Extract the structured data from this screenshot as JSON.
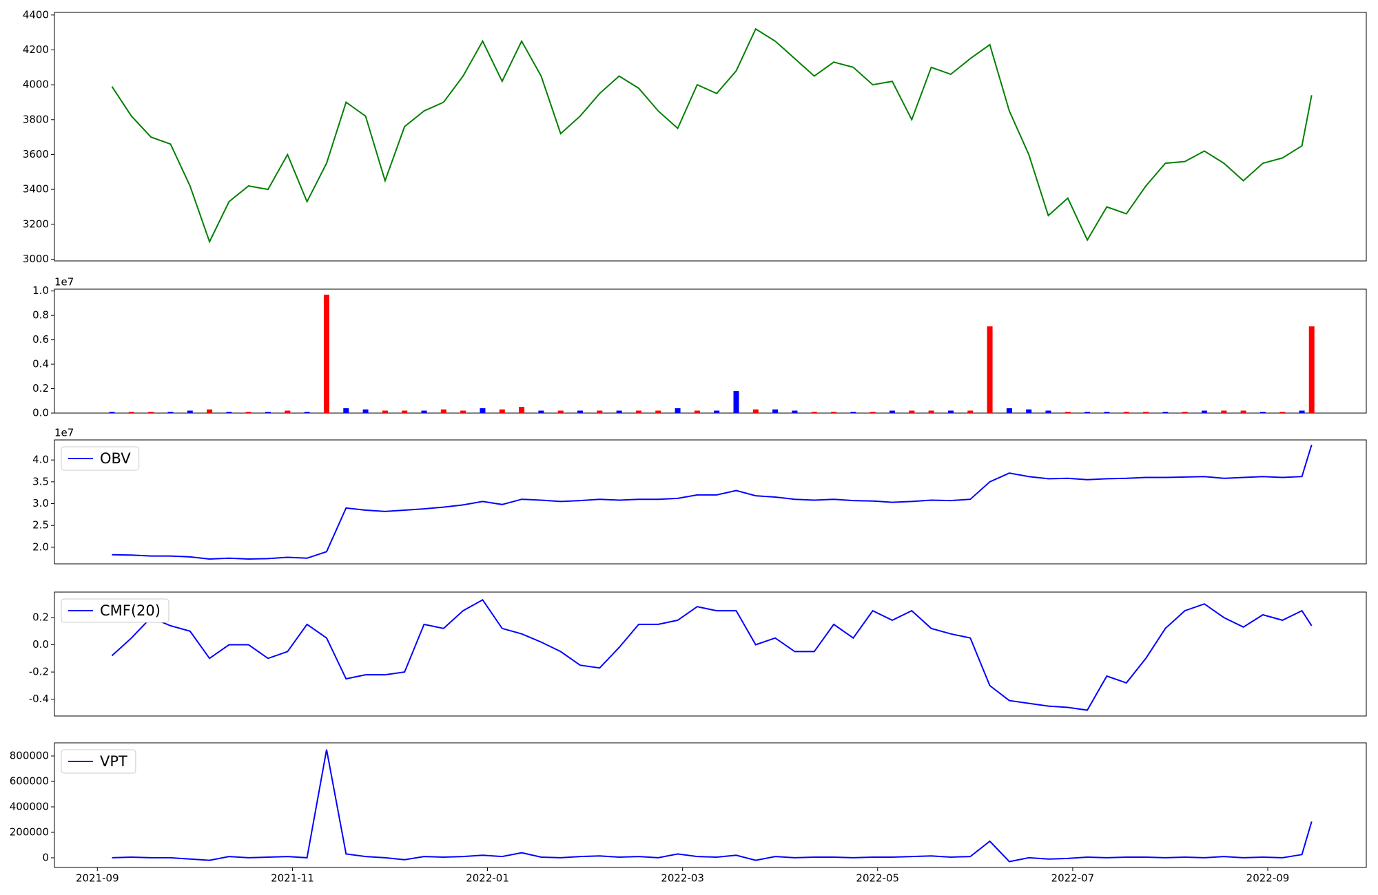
{
  "chart_data": [
    {
      "type": "line",
      "color": "green",
      "x": [
        0.15,
        0.35,
        0.55,
        0.75,
        0.95,
        1.15,
        1.35,
        1.55,
        1.75,
        1.95,
        2.15,
        2.35,
        2.55,
        2.75,
        2.95,
        3.15,
        3.35,
        3.55,
        3.75,
        3.95,
        4.15,
        4.35,
        4.55,
        4.75,
        4.95,
        5.15,
        5.35,
        5.55,
        5.75,
        5.95,
        6.15,
        6.35,
        6.55,
        6.75,
        6.95,
        7.15,
        7.35,
        7.55,
        7.75,
        7.95,
        8.15,
        8.35,
        8.55,
        8.75,
        8.95,
        9.15,
        9.35,
        9.55,
        9.75,
        9.95,
        10.15,
        10.35,
        10.55,
        10.75,
        10.95,
        11.15,
        11.35,
        11.55,
        11.75,
        11.95,
        12.15,
        12.35,
        12.45
      ],
      "values": [
        3990,
        3820,
        3700,
        3660,
        3420,
        3100,
        3330,
        3420,
        3400,
        3600,
        3330,
        3550,
        3900,
        3820,
        3450,
        3760,
        3850,
        3900,
        4050,
        4250,
        4020,
        4250,
        4050,
        3720,
        3820,
        3950,
        4050,
        3980,
        3850,
        3750,
        4000,
        3950,
        4080,
        4320,
        4250,
        4150,
        4050,
        4130,
        4100,
        4000,
        4020,
        3800,
        4100,
        4060,
        4150,
        4230,
        3850,
        3600,
        3250,
        3350,
        3110,
        3300,
        3260,
        3420,
        3550,
        3560,
        3620,
        3550,
        3450,
        3550,
        3580,
        3650,
        3940
      ],
      "xlim": [
        -0.44,
        13.01
      ],
      "ylim": [
        2990,
        4415
      ],
      "yticks": [
        3000,
        3200,
        3400,
        3600,
        3800,
        4000,
        4200,
        4400
      ]
    },
    {
      "type": "bar",
      "offset_label": "1e7",
      "x": [
        0.15,
        0.35,
        0.55,
        0.75,
        0.95,
        1.15,
        1.35,
        1.55,
        1.75,
        1.95,
        2.15,
        2.35,
        2.55,
        2.75,
        2.95,
        3.15,
        3.35,
        3.55,
        3.75,
        3.95,
        4.15,
        4.35,
        4.55,
        4.75,
        4.95,
        5.15,
        5.35,
        5.55,
        5.75,
        5.95,
        6.15,
        6.35,
        6.55,
        6.75,
        6.95,
        7.15,
        7.35,
        7.55,
        7.75,
        7.95,
        8.15,
        8.35,
        8.55,
        8.75,
        8.95,
        9.15,
        9.35,
        9.55,
        9.75,
        9.95,
        10.15,
        10.35,
        10.55,
        10.75,
        10.95,
        11.15,
        11.35,
        11.55,
        11.75,
        11.95,
        12.15,
        12.35,
        12.45
      ],
      "values": [
        0.01,
        0.01,
        0.01,
        0.01,
        0.02,
        0.03,
        0.01,
        0.01,
        0.01,
        0.02,
        0.01,
        0.97,
        0.04,
        0.03,
        0.02,
        0.02,
        0.02,
        0.03,
        0.02,
        0.04,
        0.03,
        0.05,
        0.02,
        0.02,
        0.02,
        0.02,
        0.02,
        0.02,
        0.02,
        0.04,
        0.02,
        0.02,
        0.18,
        0.03,
        0.03,
        0.02,
        0.01,
        0.01,
        0.01,
        0.01,
        0.02,
        0.02,
        0.02,
        0.02,
        0.02,
        0.71,
        0.04,
        0.03,
        0.02,
        0.01,
        0.01,
        0.01,
        0.01,
        0.01,
        0.01,
        0.01,
        0.02,
        0.02,
        0.02,
        0.01,
        0.01,
        0.02,
        0.71
      ],
      "colors": [
        "blue",
        "red",
        "red",
        "blue",
        "blue",
        "red",
        "blue",
        "red",
        "blue",
        "red",
        "blue",
        "red",
        "blue",
        "blue",
        "red",
        "red",
        "blue",
        "red",
        "red",
        "blue",
        "red",
        "red",
        "blue",
        "red",
        "blue",
        "red",
        "blue",
        "red",
        "red",
        "blue",
        "red",
        "blue",
        "blue",
        "red",
        "blue",
        "blue",
        "red",
        "red",
        "blue",
        "red",
        "blue",
        "red",
        "red",
        "blue",
        "red",
        "red",
        "blue",
        "blue",
        "blue",
        "red",
        "blue",
        "blue",
        "red",
        "red",
        "blue",
        "red",
        "blue",
        "red",
        "red",
        "blue",
        "red",
        "blue",
        "red"
      ],
      "xlim": [
        -0.44,
        13.01
      ],
      "ylim": [
        0,
        1.015
      ],
      "yticks": [
        {
          "value": 0,
          "label": "0.0"
        },
        0.2,
        0.4,
        0.6,
        0.8,
        {
          "value": 1,
          "label": "1.0"
        }
      ]
    },
    {
      "type": "line",
      "offset_label": "1e7",
      "legend": "upper left",
      "x": [
        0.15,
        0.35,
        0.55,
        0.75,
        0.95,
        1.15,
        1.35,
        1.55,
        1.75,
        1.95,
        2.15,
        2.35,
        2.55,
        2.75,
        2.95,
        3.15,
        3.35,
        3.55,
        3.75,
        3.95,
        4.15,
        4.35,
        4.55,
        4.75,
        4.95,
        5.15,
        5.35,
        5.55,
        5.75,
        5.95,
        6.15,
        6.35,
        6.55,
        6.75,
        6.95,
        7.15,
        7.35,
        7.55,
        7.75,
        7.95,
        8.15,
        8.35,
        8.55,
        8.75,
        8.95,
        9.15,
        9.35,
        9.55,
        9.75,
        9.95,
        10.15,
        10.35,
        10.55,
        10.75,
        10.95,
        11.15,
        11.35,
        11.55,
        11.75,
        11.95,
        12.15,
        12.35,
        12.45
      ],
      "series": [
        {
          "name": "OBV",
          "color": "blue",
          "values": [
            1.83,
            1.82,
            1.8,
            1.8,
            1.78,
            1.73,
            1.75,
            1.73,
            1.74,
            1.77,
            1.75,
            1.9,
            2.9,
            2.85,
            2.82,
            2.85,
            2.88,
            2.92,
            2.97,
            3.05,
            2.98,
            3.1,
            3.08,
            3.05,
            3.07,
            3.1,
            3.08,
            3.1,
            3.1,
            3.12,
            3.2,
            3.2,
            3.3,
            3.18,
            3.15,
            3.1,
            3.08,
            3.1,
            3.07,
            3.06,
            3.03,
            3.05,
            3.08,
            3.07,
            3.1,
            3.5,
            3.7,
            3.62,
            3.57,
            3.58,
            3.55,
            3.57,
            3.58,
            3.6,
            3.6,
            3.61,
            3.62,
            3.58,
            3.6,
            3.62,
            3.6,
            3.62,
            4.35
          ]
        }
      ],
      "xlim": [
        -0.44,
        13.01
      ],
      "ylim": [
        1.62,
        4.46
      ],
      "yticks": [
        {
          "value": 2,
          "label": "2.0"
        },
        2.5,
        {
          "value": 3,
          "label": "3.0"
        },
        3.5,
        {
          "value": 4,
          "label": "4.0"
        }
      ]
    },
    {
      "type": "line",
      "legend": "upper left",
      "x": [
        0.15,
        0.35,
        0.55,
        0.75,
        0.95,
        1.15,
        1.35,
        1.55,
        1.75,
        1.95,
        2.15,
        2.35,
        2.55,
        2.75,
        2.95,
        3.15,
        3.35,
        3.55,
        3.75,
        3.95,
        4.15,
        4.35,
        4.55,
        4.75,
        4.95,
        5.15,
        5.35,
        5.55,
        5.75,
        5.95,
        6.15,
        6.35,
        6.55,
        6.75,
        6.95,
        7.15,
        7.35,
        7.55,
        7.75,
        7.95,
        8.15,
        8.35,
        8.55,
        8.75,
        8.95,
        9.15,
        9.35,
        9.55,
        9.75,
        9.95,
        10.15,
        10.35,
        10.55,
        10.75,
        10.95,
        11.15,
        11.35,
        11.55,
        11.75,
        11.95,
        12.15,
        12.35,
        12.45
      ],
      "series": [
        {
          "name": "CMF(20)",
          "color": "blue",
          "values": [
            -0.08,
            0.05,
            0.2,
            0.14,
            0.1,
            -0.1,
            0.0,
            0.0,
            -0.1,
            -0.05,
            0.15,
            0.05,
            -0.25,
            -0.22,
            -0.22,
            -0.2,
            0.15,
            0.12,
            0.25,
            0.33,
            0.12,
            0.08,
            0.02,
            -0.05,
            -0.15,
            -0.17,
            -0.02,
            0.15,
            0.15,
            0.18,
            0.28,
            0.25,
            0.25,
            0.0,
            0.05,
            -0.05,
            -0.05,
            0.15,
            0.05,
            0.25,
            0.18,
            0.25,
            0.12,
            0.08,
            0.05,
            -0.3,
            -0.41,
            -0.43,
            -0.45,
            -0.46,
            -0.48,
            -0.23,
            -0.28,
            -0.1,
            0.12,
            0.25,
            0.3,
            0.2,
            0.13,
            0.22,
            0.18,
            0.25,
            0.14
          ]
        }
      ],
      "xlim": [
        -0.44,
        13.01
      ],
      "ylim": [
        -0.523,
        0.387
      ],
      "yticks": [
        -0.4,
        -0.2,
        {
          "value": 0,
          "label": "0.0"
        },
        0.2
      ]
    },
    {
      "type": "line",
      "legend": "upper left",
      "x": [
        0.15,
        0.35,
        0.55,
        0.75,
        0.95,
        1.15,
        1.35,
        1.55,
        1.75,
        1.95,
        2.15,
        2.35,
        2.55,
        2.75,
        2.95,
        3.15,
        3.35,
        3.55,
        3.75,
        3.95,
        4.15,
        4.35,
        4.55,
        4.75,
        4.95,
        5.15,
        5.35,
        5.55,
        5.75,
        5.95,
        6.15,
        6.35,
        6.55,
        6.75,
        6.95,
        7.15,
        7.35,
        7.55,
        7.75,
        7.95,
        8.15,
        8.35,
        8.55,
        8.75,
        8.95,
        9.15,
        9.35,
        9.55,
        9.75,
        9.95,
        10.15,
        10.35,
        10.55,
        10.75,
        10.95,
        11.15,
        11.35,
        11.55,
        11.75,
        11.95,
        12.15,
        12.35,
        12.45
      ],
      "series": [
        {
          "name": "VPT",
          "color": "blue",
          "values": [
            0,
            5000,
            0,
            0,
            -10000,
            -20000,
            10000,
            0,
            5000,
            10000,
            0,
            850000,
            30000,
            10000,
            0,
            -15000,
            10000,
            5000,
            10000,
            20000,
            10000,
            40000,
            5000,
            0,
            10000,
            15000,
            5000,
            10000,
            0,
            30000,
            10000,
            5000,
            20000,
            -20000,
            10000,
            0,
            5000,
            5000,
            0,
            5000,
            5000,
            10000,
            15000,
            5000,
            10000,
            130000,
            -30000,
            0,
            -10000,
            -5000,
            5000,
            0,
            5000,
            5000,
            0,
            5000,
            0,
            10000,
            0,
            5000,
            0,
            25000,
            285000
          ]
        }
      ],
      "xlim": [
        -0.44,
        13.01
      ],
      "ylim": [
        -76000,
        903000
      ],
      "yticks": [
        0,
        200000,
        400000,
        600000,
        800000
      ],
      "xticks": [
        {
          "value": 0,
          "label": "2021-09"
        },
        {
          "value": 2,
          "label": "2021-11"
        },
        {
          "value": 4,
          "label": "2022-01"
        },
        {
          "value": 6,
          "label": "2022-03"
        },
        {
          "value": 8,
          "label": "2022-05"
        },
        {
          "value": 10,
          "label": "2022-07"
        },
        {
          "value": 12,
          "label": "2022-09"
        }
      ]
    }
  ]
}
